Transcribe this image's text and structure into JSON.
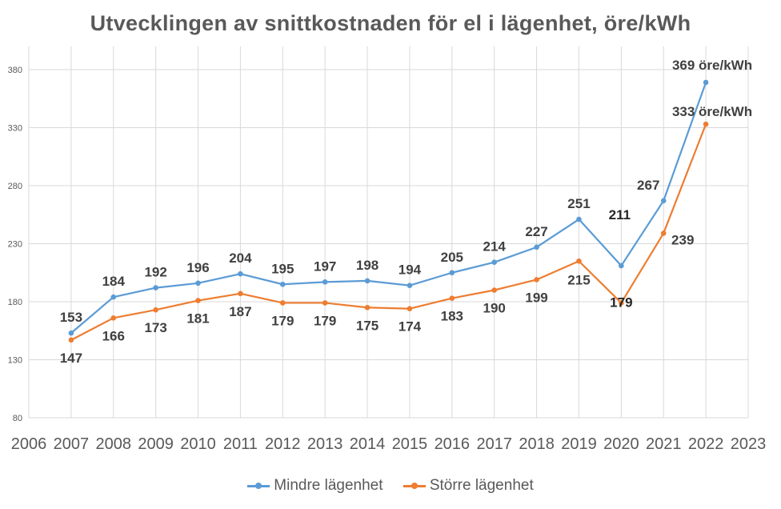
{
  "chart_data": {
    "type": "line",
    "title": "Utvecklingen av snittkostnaden för el i lägenhet, öre/kWh",
    "x_ticks": [
      "2006",
      "2007",
      "2008",
      "2009",
      "2010",
      "2011",
      "2012",
      "2013",
      "2014",
      "2015",
      "2016",
      "2017",
      "2018",
      "2019",
      "2020",
      "2021",
      "2022",
      "2023"
    ],
    "y_ticks": [
      "80",
      "130",
      "180",
      "230",
      "280",
      "330",
      "380"
    ],
    "xlim": [
      2006,
      2023
    ],
    "ylim": [
      80,
      400
    ],
    "grid": true,
    "legend_position": "bottom",
    "series": [
      {
        "name": "Mindre lägenhet",
        "color": "#5b9bd5",
        "x": [
          2007,
          2008,
          2009,
          2010,
          2011,
          2012,
          2013,
          2014,
          2015,
          2016,
          2017,
          2018,
          2019,
          2020,
          2021,
          2022
        ],
        "values": [
          153,
          184,
          192,
          196,
          204,
          195,
          197,
          198,
          194,
          205,
          214,
          227,
          251,
          211,
          267,
          369
        ],
        "labels": [
          "153",
          "184",
          "192",
          "196",
          "204",
          "195",
          "197",
          "198",
          "194",
          "205",
          "214",
          "227",
          "251",
          "211",
          "267",
          "369 öre/kWh"
        ]
      },
      {
        "name": "Större lägenhet",
        "color": "#ed7d31",
        "x": [
          2007,
          2008,
          2009,
          2010,
          2011,
          2012,
          2013,
          2014,
          2015,
          2016,
          2017,
          2018,
          2019,
          2020,
          2021,
          2022
        ],
        "values": [
          147,
          166,
          173,
          181,
          187,
          179,
          179,
          175,
          174,
          183,
          190,
          199,
          215,
          179,
          239,
          333
        ],
        "labels": [
          "147",
          "166",
          "173",
          "181",
          "187",
          "179",
          "179",
          "175",
          "174",
          "183",
          "190",
          "199",
          "215",
          "179",
          "239",
          "333 öre/kWh"
        ]
      }
    ]
  }
}
